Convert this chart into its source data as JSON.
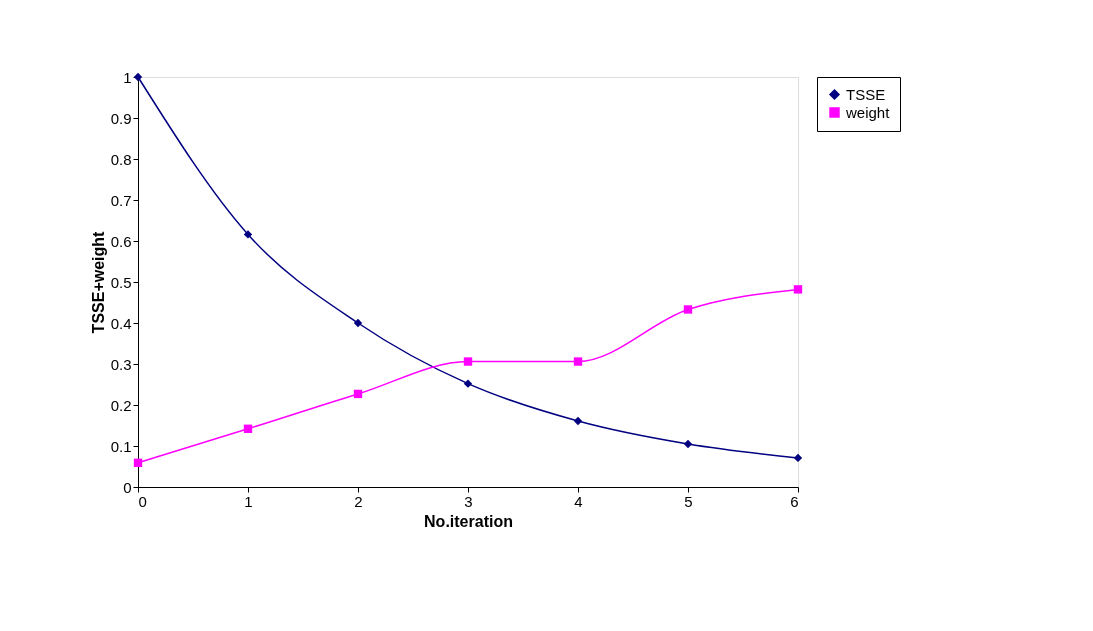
{
  "chart_data": {
    "type": "line",
    "xlabel": "No.iteration",
    "ylabel": "TSSE+weight",
    "x": [
      0,
      1,
      2,
      3,
      4,
      5,
      6
    ],
    "series": [
      {
        "name": "TSSE",
        "color": "#000080",
        "marker": "diamond",
        "values": [
          1.0,
          0.616,
          0.4,
          0.252,
          0.161,
          0.105,
          0.071
        ]
      },
      {
        "name": "weight",
        "color": "#ff00ff",
        "marker": "square",
        "values": [
          0.059,
          0.142,
          0.227,
          0.306,
          0.306,
          0.433,
          0.482
        ]
      }
    ],
    "xlim": [
      0,
      6
    ],
    "xticks": [
      0,
      1,
      2,
      3,
      4,
      5,
      6
    ],
    "ylim": [
      0,
      1
    ],
    "yticks": [
      0,
      0.1,
      0.2,
      0.3,
      0.4,
      0.5,
      0.6,
      0.7,
      0.8,
      0.9,
      1
    ],
    "grid": false,
    "legend": "right",
    "line_style": "solid"
  }
}
